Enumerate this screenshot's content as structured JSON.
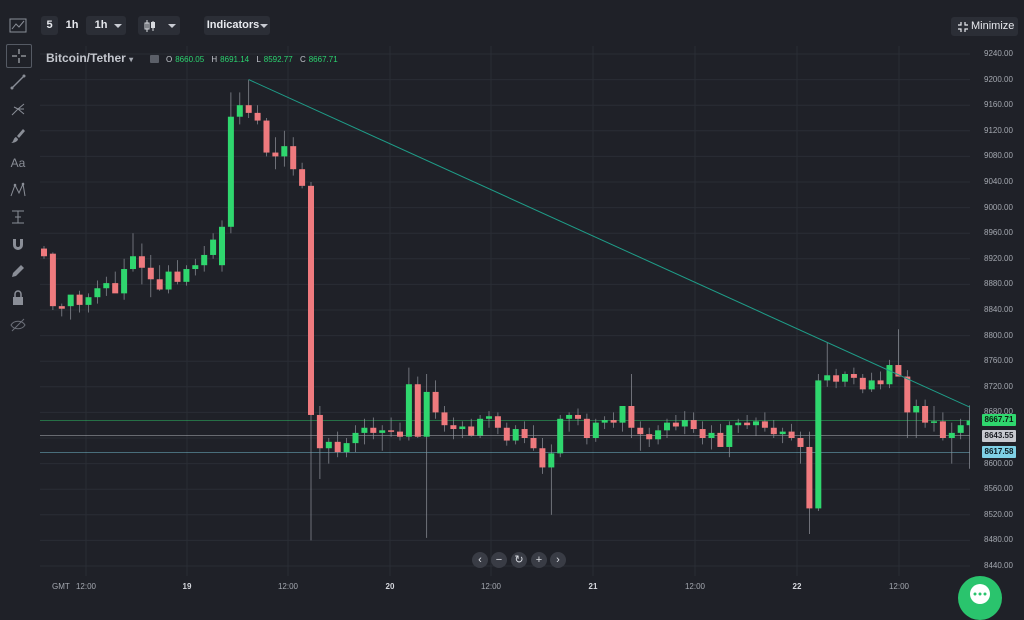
{
  "toolbar_top": {
    "interval_5": "5",
    "interval_1h": "1h",
    "interval_select": "1h",
    "indicators_label": "Indicators",
    "minimize_label": "Minimize"
  },
  "chart_header": {
    "symbol": "Bitcoin/Tether",
    "open_label": "O",
    "open_value": "8660.05",
    "high_label": "H",
    "high_value": "8691.14",
    "low_label": "L",
    "low_value": "8592.77",
    "close_label": "C",
    "close_value": "8667.71"
  },
  "side_tools": [
    "chart-line-icon",
    "crosshair-icon",
    "trend-line-icon",
    "fork-icon",
    "brush-icon",
    "text-icon",
    "pattern-icon",
    "measure-icon",
    "magnet-icon",
    "pencil-icon",
    "lock-icon",
    "eye-hide-icon"
  ],
  "side_text_tool": "Aa",
  "nav_buttons": [
    "‹",
    "−",
    "↻",
    "+",
    "›"
  ],
  "y_axis": {
    "ticks": [
      "9240.00",
      "9200.00",
      "9160.00",
      "9120.00",
      "9080.00",
      "9040.00",
      "9000.00",
      "8960.00",
      "8920.00",
      "8880.00",
      "8840.00",
      "8800.00",
      "8760.00",
      "8720.00",
      "8680.00",
      "8640.00",
      "8600.00",
      "8560.00",
      "8520.00",
      "8480.00",
      "8440.00"
    ],
    "price_boxes": [
      {
        "label": "8667.71",
        "value": 8667.71,
        "bg": "#2fd76e",
        "fg": "#0d1a10"
      },
      {
        "label": "8643.55",
        "value": 8643.55,
        "bg": "#c7c9cf",
        "fg": "#1a1c22"
      },
      {
        "label": "8617.58",
        "value": 8617.58,
        "bg": "#7fd1e6",
        "fg": "#0b1a20"
      }
    ]
  },
  "x_axis": {
    "gmt": "GMT",
    "ticks": [
      {
        "label": "12:00",
        "bold": false,
        "x": "18 12:00"
      },
      {
        "label": "19",
        "bold": true,
        "x": "19 00:00"
      },
      {
        "label": "12:00",
        "bold": false,
        "x": "19 12:00"
      },
      {
        "label": "20",
        "bold": true,
        "x": "20 00:00"
      },
      {
        "label": "12:00",
        "bold": false,
        "x": "20 12:00"
      },
      {
        "label": "21",
        "bold": true,
        "x": "21 00:00"
      },
      {
        "label": "12:00",
        "bold": false,
        "x": "21 12:00"
      },
      {
        "label": "22",
        "bold": true,
        "x": "22 00:00"
      },
      {
        "label": "12:00",
        "bold": false,
        "x": "22 12:00"
      }
    ]
  },
  "colors": {
    "up": "#2fd76e",
    "down": "#ef7a7e",
    "trend": "#1f9e89",
    "grid": "#2a2d35",
    "bg": "#1f2128"
  },
  "chart_data": {
    "type": "candlestick",
    "ylim": [
      8440,
      9240
    ],
    "candles": [
      {
        "o": 8936,
        "h": 8940,
        "l": 8920,
        "c": 8924
      },
      {
        "o": 8928,
        "h": 8930,
        "l": 8840,
        "c": 8846
      },
      {
        "o": 8846,
        "h": 8850,
        "l": 8830,
        "c": 8842
      },
      {
        "o": 8846,
        "h": 8860,
        "l": 8825,
        "c": 8864
      },
      {
        "o": 8864,
        "h": 8870,
        "l": 8836,
        "c": 8848
      },
      {
        "o": 8848,
        "h": 8866,
        "l": 8836,
        "c": 8860
      },
      {
        "o": 8860,
        "h": 8886,
        "l": 8850,
        "c": 8874
      },
      {
        "o": 8874,
        "h": 8892,
        "l": 8862,
        "c": 8882
      },
      {
        "o": 8882,
        "h": 8900,
        "l": 8870,
        "c": 8866
      },
      {
        "o": 8866,
        "h": 8920,
        "l": 8856,
        "c": 8904
      },
      {
        "o": 8904,
        "h": 8960,
        "l": 8900,
        "c": 8924
      },
      {
        "o": 8924,
        "h": 8944,
        "l": 8880,
        "c": 8906
      },
      {
        "o": 8906,
        "h": 8926,
        "l": 8860,
        "c": 8888
      },
      {
        "o": 8888,
        "h": 8910,
        "l": 8870,
        "c": 8872
      },
      {
        "o": 8872,
        "h": 8910,
        "l": 8866,
        "c": 8900
      },
      {
        "o": 8900,
        "h": 8918,
        "l": 8880,
        "c": 8884
      },
      {
        "o": 8884,
        "h": 8910,
        "l": 8878,
        "c": 8904
      },
      {
        "o": 8904,
        "h": 8920,
        "l": 8894,
        "c": 8910
      },
      {
        "o": 8910,
        "h": 8940,
        "l": 8900,
        "c": 8926
      },
      {
        "o": 8926,
        "h": 8960,
        "l": 8920,
        "c": 8950
      },
      {
        "o": 8910,
        "h": 8980,
        "l": 8900,
        "c": 8970
      },
      {
        "o": 8970,
        "h": 9180,
        "l": 8960,
        "c": 9142
      },
      {
        "o": 9142,
        "h": 9180,
        "l": 9130,
        "c": 9160
      },
      {
        "o": 9160,
        "h": 9200,
        "l": 9140,
        "c": 9148
      },
      {
        "o": 9148,
        "h": 9160,
        "l": 9130,
        "c": 9136
      },
      {
        "o": 9136,
        "h": 9140,
        "l": 9080,
        "c": 9086
      },
      {
        "o": 9086,
        "h": 9110,
        "l": 9060,
        "c": 9080
      },
      {
        "o": 9080,
        "h": 9120,
        "l": 9064,
        "c": 9096
      },
      {
        "o": 9096,
        "h": 9110,
        "l": 9050,
        "c": 9060
      },
      {
        "o": 9060,
        "h": 9070,
        "l": 9030,
        "c": 9034
      },
      {
        "o": 9034,
        "h": 9040,
        "l": 8480,
        "c": 8676
      },
      {
        "o": 8676,
        "h": 8690,
        "l": 8576,
        "c": 8624
      },
      {
        "o": 8624,
        "h": 8640,
        "l": 8600,
        "c": 8634
      },
      {
        "o": 8634,
        "h": 8650,
        "l": 8610,
        "c": 8618
      },
      {
        "o": 8618,
        "h": 8640,
        "l": 8610,
        "c": 8632
      },
      {
        "o": 8632,
        "h": 8660,
        "l": 8618,
        "c": 8648
      },
      {
        "o": 8648,
        "h": 8670,
        "l": 8630,
        "c": 8656
      },
      {
        "o": 8656,
        "h": 8672,
        "l": 8638,
        "c": 8648
      },
      {
        "o": 8648,
        "h": 8660,
        "l": 8620,
        "c": 8652
      },
      {
        "o": 8652,
        "h": 8672,
        "l": 8642,
        "c": 8650
      },
      {
        "o": 8650,
        "h": 8664,
        "l": 8636,
        "c": 8642
      },
      {
        "o": 8642,
        "h": 8750,
        "l": 8636,
        "c": 8724
      },
      {
        "o": 8724,
        "h": 8736,
        "l": 8640,
        "c": 8642
      },
      {
        "o": 8642,
        "h": 8740,
        "l": 8484,
        "c": 8712
      },
      {
        "o": 8712,
        "h": 8730,
        "l": 8670,
        "c": 8680
      },
      {
        "o": 8680,
        "h": 8690,
        "l": 8650,
        "c": 8660
      },
      {
        "o": 8660,
        "h": 8672,
        "l": 8638,
        "c": 8654
      },
      {
        "o": 8654,
        "h": 8666,
        "l": 8640,
        "c": 8658
      },
      {
        "o": 8658,
        "h": 8670,
        "l": 8642,
        "c": 8644
      },
      {
        "o": 8644,
        "h": 8676,
        "l": 8640,
        "c": 8670
      },
      {
        "o": 8670,
        "h": 8682,
        "l": 8656,
        "c": 8674
      },
      {
        "o": 8674,
        "h": 8680,
        "l": 8646,
        "c": 8656
      },
      {
        "o": 8656,
        "h": 8664,
        "l": 8628,
        "c": 8636
      },
      {
        "o": 8636,
        "h": 8660,
        "l": 8630,
        "c": 8654
      },
      {
        "o": 8654,
        "h": 8666,
        "l": 8632,
        "c": 8640
      },
      {
        "o": 8640,
        "h": 8660,
        "l": 8620,
        "c": 8624
      },
      {
        "o": 8624,
        "h": 8640,
        "l": 8584,
        "c": 8594
      },
      {
        "o": 8594,
        "h": 8630,
        "l": 8520,
        "c": 8616
      },
      {
        "o": 8616,
        "h": 8676,
        "l": 8610,
        "c": 8670
      },
      {
        "o": 8670,
        "h": 8680,
        "l": 8650,
        "c": 8676
      },
      {
        "o": 8676,
        "h": 8686,
        "l": 8660,
        "c": 8670
      },
      {
        "o": 8670,
        "h": 8678,
        "l": 8630,
        "c": 8640
      },
      {
        "o": 8640,
        "h": 8670,
        "l": 8634,
        "c": 8664
      },
      {
        "o": 8664,
        "h": 8674,
        "l": 8654,
        "c": 8668
      },
      {
        "o": 8668,
        "h": 8680,
        "l": 8656,
        "c": 8664
      },
      {
        "o": 8664,
        "h": 8686,
        "l": 8650,
        "c": 8690
      },
      {
        "o": 8690,
        "h": 8740,
        "l": 8640,
        "c": 8656
      },
      {
        "o": 8656,
        "h": 8666,
        "l": 8620,
        "c": 8646
      },
      {
        "o": 8646,
        "h": 8656,
        "l": 8626,
        "c": 8638
      },
      {
        "o": 8638,
        "h": 8660,
        "l": 8630,
        "c": 8652
      },
      {
        "o": 8652,
        "h": 8670,
        "l": 8640,
        "c": 8664
      },
      {
        "o": 8664,
        "h": 8676,
        "l": 8652,
        "c": 8658
      },
      {
        "o": 8658,
        "h": 8682,
        "l": 8646,
        "c": 8668
      },
      {
        "o": 8668,
        "h": 8680,
        "l": 8648,
        "c": 8654
      },
      {
        "o": 8654,
        "h": 8666,
        "l": 8630,
        "c": 8640
      },
      {
        "o": 8640,
        "h": 8660,
        "l": 8622,
        "c": 8648
      },
      {
        "o": 8648,
        "h": 8662,
        "l": 8630,
        "c": 8626
      },
      {
        "o": 8626,
        "h": 8666,
        "l": 8610,
        "c": 8660
      },
      {
        "o": 8660,
        "h": 8670,
        "l": 8648,
        "c": 8664
      },
      {
        "o": 8664,
        "h": 8676,
        "l": 8654,
        "c": 8660
      },
      {
        "o": 8660,
        "h": 8672,
        "l": 8644,
        "c": 8666
      },
      {
        "o": 8666,
        "h": 8680,
        "l": 8650,
        "c": 8656
      },
      {
        "o": 8656,
        "h": 8668,
        "l": 8640,
        "c": 8646
      },
      {
        "o": 8646,
        "h": 8656,
        "l": 8632,
        "c": 8650
      },
      {
        "o": 8650,
        "h": 8662,
        "l": 8636,
        "c": 8640
      },
      {
        "o": 8640,
        "h": 8650,
        "l": 8600,
        "c": 8626
      },
      {
        "o": 8626,
        "h": 8650,
        "l": 8490,
        "c": 8530
      },
      {
        "o": 8530,
        "h": 8740,
        "l": 8526,
        "c": 8730
      },
      {
        "o": 8730,
        "h": 8790,
        "l": 8720,
        "c": 8738
      },
      {
        "o": 8738,
        "h": 8748,
        "l": 8718,
        "c": 8728
      },
      {
        "o": 8728,
        "h": 8744,
        "l": 8720,
        "c": 8740
      },
      {
        "o": 8740,
        "h": 8750,
        "l": 8724,
        "c": 8734
      },
      {
        "o": 8734,
        "h": 8740,
        "l": 8710,
        "c": 8716
      },
      {
        "o": 8716,
        "h": 8742,
        "l": 8712,
        "c": 8730
      },
      {
        "o": 8730,
        "h": 8744,
        "l": 8716,
        "c": 8724
      },
      {
        "o": 8724,
        "h": 8762,
        "l": 8718,
        "c": 8754
      },
      {
        "o": 8754,
        "h": 8810,
        "l": 8740,
        "c": 8736
      },
      {
        "o": 8736,
        "h": 8746,
        "l": 8640,
        "c": 8680
      },
      {
        "o": 8680,
        "h": 8700,
        "l": 8640,
        "c": 8690
      },
      {
        "o": 8690,
        "h": 8700,
        "l": 8656,
        "c": 8664
      },
      {
        "o": 8664,
        "h": 8690,
        "l": 8650,
        "c": 8666
      },
      {
        "o": 8666,
        "h": 8680,
        "l": 8636,
        "c": 8640
      },
      {
        "o": 8640,
        "h": 8664,
        "l": 8600,
        "c": 8648
      },
      {
        "o": 8648,
        "h": 8670,
        "l": 8638,
        "c": 8660
      },
      {
        "o": 8660,
        "h": 8691,
        "l": 8592,
        "c": 8667
      }
    ],
    "trend_line": {
      "from": {
        "index": 23,
        "price": 9200
      },
      "to": {
        "index": 105,
        "price": 8682
      }
    },
    "h_lines": [
      8667.71,
      8643.55,
      8617.58
    ]
  }
}
